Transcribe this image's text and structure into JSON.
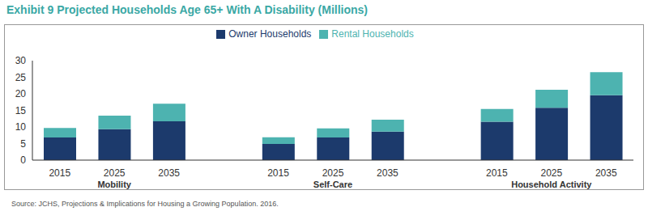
{
  "chart_data": {
    "type": "bar",
    "title": "Exhibit 9 Projected Households Age 65+ With A Disability (Millions)",
    "source": "Source: JCHS, Projections & Implications for Housing a Growing Population. 2016.",
    "categories": [
      "2015",
      "2025",
      "2035",
      null,
      "2015",
      "2025",
      "2035",
      null,
      "2015",
      "2025",
      "2035"
    ],
    "groups": [
      "Mobility",
      "Self-Care",
      "Household Activity"
    ],
    "series": [
      {
        "name": "Owner Households",
        "color": "#1c3a6c",
        "values": [
          6.8,
          9.3,
          11.7,
          null,
          4.9,
          6.8,
          8.6,
          null,
          11.6,
          15.8,
          19.6
        ]
      },
      {
        "name": "Rental Households",
        "color": "#4db3b0",
        "values": [
          2.9,
          4.1,
          5.3,
          null,
          2.0,
          2.8,
          3.6,
          null,
          3.8,
          5.4,
          6.9
        ]
      }
    ],
    "ylim": [
      0,
      30
    ],
    "yticks": [
      0,
      5,
      10,
      15,
      20,
      25,
      30
    ],
    "stacked": true,
    "legend": "top",
    "grid": false
  }
}
